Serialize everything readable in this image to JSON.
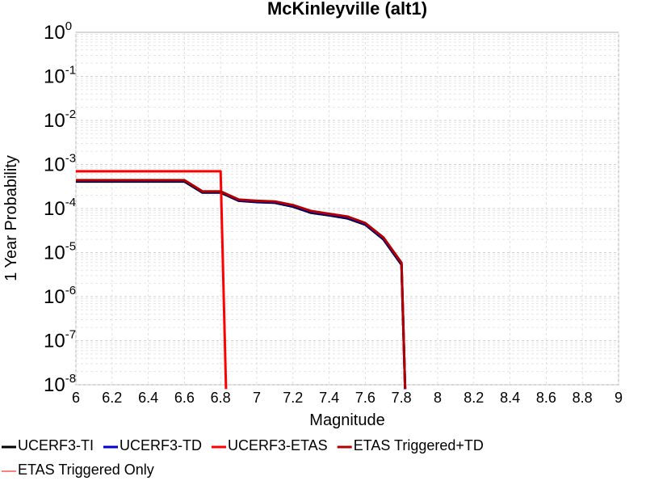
{
  "chart_data": {
    "type": "line",
    "title": "McKinleyville (alt1)",
    "xlabel": "Magnitude",
    "ylabel": "1 Year Probability",
    "xlim": [
      6,
      9
    ],
    "ylim": [
      1e-08,
      1
    ],
    "yscale": "log",
    "grid": true,
    "legend_position": "bottom",
    "x_ticks": [
      "6",
      "6.2",
      "6.4",
      "6.6",
      "6.8",
      "7",
      "7.2",
      "7.4",
      "7.6",
      "7.8",
      "8",
      "8.2",
      "8.4",
      "8.6",
      "8.8",
      "9"
    ],
    "y_ticks": [
      {
        "base": "10",
        "exp": "-8"
      },
      {
        "base": "10",
        "exp": "-7"
      },
      {
        "base": "10",
        "exp": "-6"
      },
      {
        "base": "10",
        "exp": "-5"
      },
      {
        "base": "10",
        "exp": "-4"
      },
      {
        "base": "10",
        "exp": "-3"
      },
      {
        "base": "10",
        "exp": "-2"
      },
      {
        "base": "10",
        "exp": "-1"
      },
      {
        "base": "10",
        "exp": "0"
      }
    ],
    "series": [
      {
        "name": "UCERF3-TI",
        "color": "#000000",
        "x": [
          6.0,
          6.1,
          6.2,
          6.3,
          6.4,
          6.5,
          6.6,
          6.7,
          6.8,
          6.9,
          7.0,
          7.1,
          7.2,
          7.3,
          7.4,
          7.5,
          7.6,
          7.7,
          7.8,
          7.82
        ],
        "y": [
          0.00041,
          0.00041,
          0.00041,
          0.00041,
          0.00041,
          0.00041,
          0.00041,
          0.00023,
          0.00023,
          0.00015,
          0.00014,
          0.000135,
          0.00011,
          8e-05,
          7e-05,
          6e-05,
          4.3e-05,
          2e-05,
          5.3e-06,
          8e-09
        ]
      },
      {
        "name": "UCERF3-TD",
        "color": "#0000cc",
        "x": [
          6.0,
          6.1,
          6.2,
          6.3,
          6.4,
          6.5,
          6.6,
          6.7,
          6.8,
          6.9,
          7.0,
          7.1,
          7.2,
          7.3,
          7.4,
          7.5,
          7.6,
          7.7,
          7.8,
          7.82
        ],
        "y": [
          0.00043,
          0.00043,
          0.00043,
          0.00043,
          0.00043,
          0.00043,
          0.00043,
          0.00024,
          0.00024,
          0.000155,
          0.000145,
          0.00014,
          0.000115,
          8.4e-05,
          7.3e-05,
          6.3e-05,
          4.5e-05,
          2.1e-05,
          5.6e-06,
          8e-09
        ]
      },
      {
        "name": "UCERF3-ETAS",
        "color": "#ff0000",
        "x": [
          6.0,
          6.1,
          6.2,
          6.3,
          6.4,
          6.5,
          6.6,
          6.7,
          6.8,
          6.83
        ],
        "y": [
          0.0007,
          0.0007,
          0.0007,
          0.0007,
          0.0007,
          0.0007,
          0.0007,
          0.0007,
          0.0007,
          8e-09
        ]
      },
      {
        "name": "ETAS Triggered+TD",
        "color": "#b00000",
        "x": [
          6.0,
          6.1,
          6.2,
          6.3,
          6.4,
          6.5,
          6.6,
          6.7,
          6.8,
          6.9,
          7.0,
          7.1,
          7.2,
          7.3,
          7.4,
          7.5,
          7.6,
          7.7,
          7.8,
          7.82
        ],
        "y": [
          0.00044,
          0.00044,
          0.00044,
          0.00044,
          0.00044,
          0.00044,
          0.00044,
          0.000245,
          0.000245,
          0.00016,
          0.00015,
          0.000145,
          0.00012,
          8.8e-05,
          7.6e-05,
          6.6e-05,
          4.7e-05,
          2.2e-05,
          5.9e-06,
          8e-09
        ]
      },
      {
        "name": "ETAS Triggered Only",
        "color": "#ff8080",
        "x": [],
        "y": []
      }
    ]
  }
}
